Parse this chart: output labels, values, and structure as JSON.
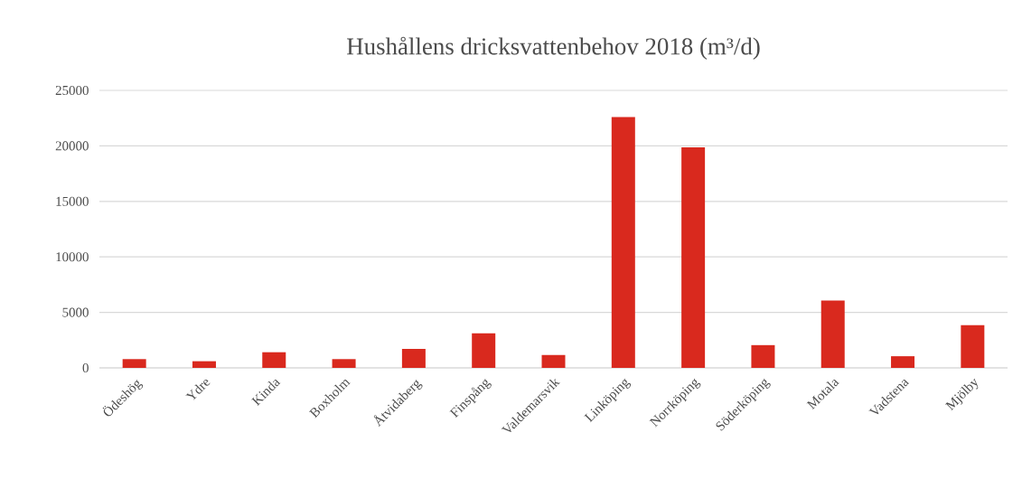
{
  "chart_data": {
    "type": "bar",
    "title": "Hushållens dricksvattenbehov 2018 (m³/d)",
    "categories": [
      "Ödeshög",
      "Ydre",
      "Kinda",
      "Boxholm",
      "Åtvidaberg",
      "Finspång",
      "Valdemarsvik",
      "Linköping",
      "Norrköping",
      "Söderköping",
      "Motala",
      "Vadstena",
      "Mjölby"
    ],
    "values": [
      790,
      600,
      1410,
      790,
      1710,
      3120,
      1160,
      22600,
      19860,
      2050,
      6060,
      1050,
      3840
    ],
    "color": "#d9291e",
    "ylim": [
      0,
      25000
    ],
    "yticks": [
      0,
      5000,
      10000,
      15000,
      20000,
      25000
    ],
    "grid": "y"
  }
}
